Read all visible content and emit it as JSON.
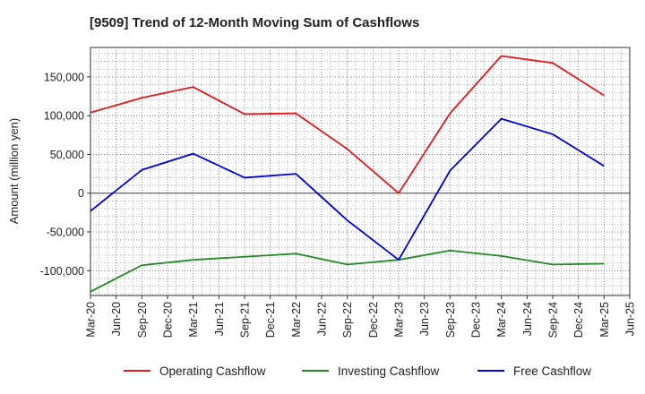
{
  "chart_data": {
    "type": "line",
    "title": "[9509]  Trend of 12-Month Moving Sum of Cashflows",
    "xlabel": "",
    "ylabel": "Amount (million yen)",
    "ylim": [
      -132000,
      188000
    ],
    "yticks": [
      -100000,
      -50000,
      0,
      50000,
      100000,
      150000
    ],
    "ytick_labels": [
      "-100,000",
      "-50,000",
      "0",
      "50,000",
      "100,000",
      "150,000"
    ],
    "x_ticks": [
      "Mar-20",
      "Jun-20",
      "Sep-20",
      "Dec-20",
      "Mar-21",
      "Jun-21",
      "Sep-21",
      "Dec-21",
      "Mar-22",
      "Jun-22",
      "Sep-22",
      "Dec-22",
      "Mar-23",
      "Jun-23",
      "Sep-23",
      "Dec-23",
      "Mar-24",
      "Jun-24",
      "Sep-24",
      "Dec-24",
      "Mar-25",
      "Jun-25"
    ],
    "x": [
      "Mar-20",
      "Sep-20",
      "Mar-21",
      "Sep-21",
      "Mar-22",
      "Sep-22",
      "Mar-23",
      "Sep-23",
      "Mar-24",
      "Sep-24",
      "Mar-25"
    ],
    "series": [
      {
        "name": "Operating Cashflow",
        "color": "#e41a1c",
        "values": [
          104000,
          123000,
          137000,
          102000,
          103000,
          57000,
          0,
          103000,
          177000,
          168000,
          126000
        ]
      },
      {
        "name": "Investing Cashflow",
        "color": "#228b22",
        "values": [
          -127000,
          -93000,
          -86000,
          -82000,
          -78000,
          -92000,
          -86000,
          -74000,
          -81000,
          -92000,
          -91000
        ]
      },
      {
        "name": "Free Cashflow",
        "color": "#0000dd",
        "values": [
          -23000,
          30000,
          51000,
          20000,
          25000,
          -35000,
          -86000,
          29000,
          96000,
          76000,
          35000
        ]
      }
    ],
    "grid": true,
    "legend_position": "bottom"
  }
}
